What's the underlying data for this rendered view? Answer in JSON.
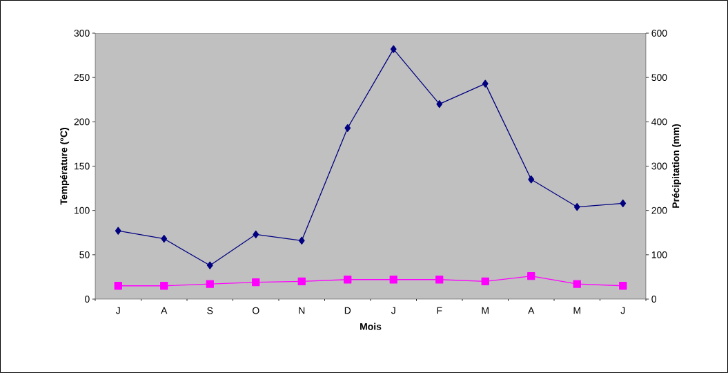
{
  "chart_data": {
    "type": "line",
    "xlabel": "Mois",
    "ylabel": "Température (°C)",
    "y2label": "Précipitation (mm)",
    "categories": [
      "J",
      "A",
      "S",
      "O",
      "N",
      "D",
      "J",
      "F",
      "M",
      "A",
      "M",
      "J"
    ],
    "series": [
      {
        "color": "#000080",
        "marker": "diamond",
        "axis": "y2",
        "values": [
          154,
          136,
          76,
          146,
          132,
          386,
          564,
          440,
          486,
          270,
          208,
          216
        ]
      },
      {
        "color": "#ff00ff",
        "marker": "square",
        "values": [
          15,
          15,
          17,
          19,
          20,
          22,
          22,
          22,
          20,
          26,
          17,
          15
        ]
      }
    ],
    "ylim": [
      0,
      300
    ],
    "yticks": [
      0,
      50,
      100,
      150,
      200,
      250,
      300
    ],
    "y2lim": [
      0,
      600
    ],
    "y2ticks": [
      0,
      100,
      200,
      300,
      400,
      500,
      600
    ],
    "grid": false,
    "line_style": "solid"
  }
}
